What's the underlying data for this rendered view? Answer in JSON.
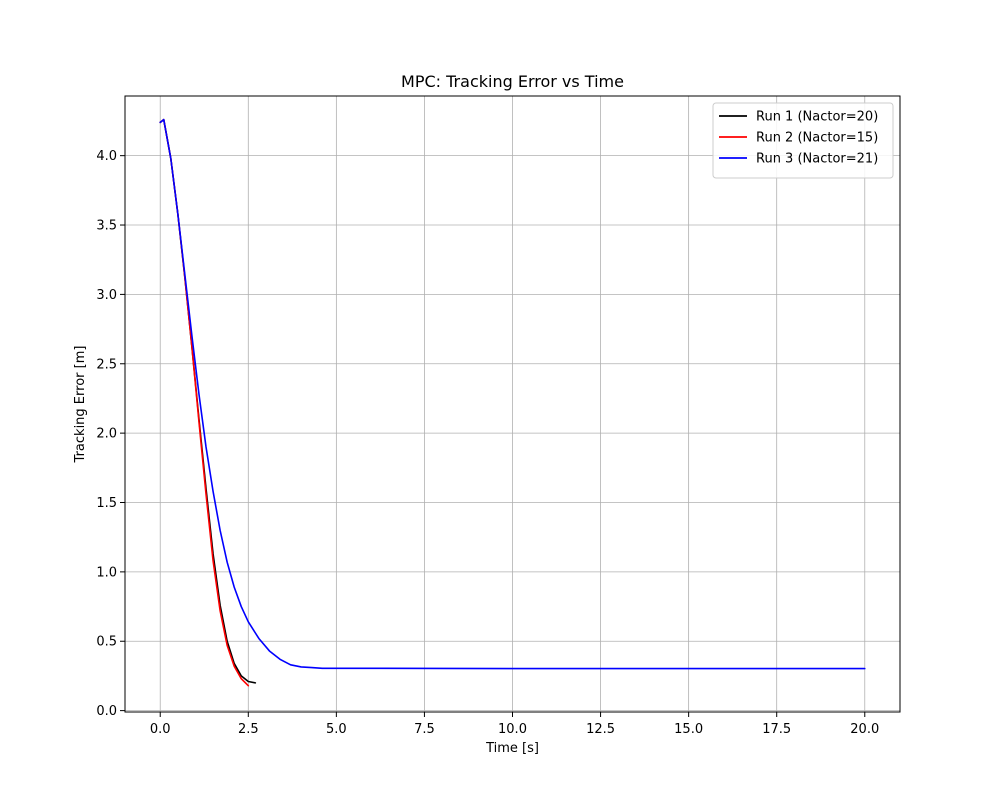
{
  "chart_data": {
    "type": "line",
    "title": "MPC: Tracking Error vs Time",
    "xlabel": "Time [s]",
    "ylabel": "Tracking Error [m]",
    "xlim": [
      -1.0,
      21.0
    ],
    "ylim": [
      -0.01,
      4.43
    ],
    "xticks": [
      0.0,
      2.5,
      5.0,
      7.5,
      10.0,
      12.5,
      15.0,
      17.5,
      20.0
    ],
    "xtick_labels": [
      "0.0",
      "2.5",
      "5.0",
      "7.5",
      "10.0",
      "12.5",
      "15.0",
      "17.5",
      "20.0"
    ],
    "yticks": [
      0.0,
      0.5,
      1.0,
      1.5,
      2.0,
      2.5,
      3.0,
      3.5,
      4.0
    ],
    "ytick_labels": [
      "0.0",
      "0.5",
      "1.0",
      "1.5",
      "2.0",
      "2.5",
      "3.0",
      "3.5",
      "4.0"
    ],
    "grid": true,
    "legend_position": "top-right",
    "series": [
      {
        "name": "Run 1 (Nactor=20)",
        "color": "#000000",
        "x": [
          0.0,
          0.1,
          0.3,
          0.5,
          0.7,
          0.9,
          1.1,
          1.3,
          1.5,
          1.7,
          1.9,
          2.1,
          2.3,
          2.5,
          2.7
        ],
        "y": [
          4.24,
          4.26,
          3.98,
          3.58,
          3.12,
          2.62,
          2.1,
          1.6,
          1.13,
          0.76,
          0.5,
          0.34,
          0.25,
          0.21,
          0.2
        ]
      },
      {
        "name": "Run 2 (Nactor=15)",
        "color": "#ff0000",
        "x": [
          0.0,
          0.1,
          0.3,
          0.5,
          0.7,
          0.9,
          1.1,
          1.3,
          1.5,
          1.7,
          1.9,
          2.1,
          2.3,
          2.5
        ],
        "y": [
          4.24,
          4.26,
          3.98,
          3.58,
          3.12,
          2.62,
          2.08,
          1.56,
          1.08,
          0.72,
          0.47,
          0.32,
          0.23,
          0.18
        ]
      },
      {
        "name": "Run 3 (Nactor=21)",
        "color": "#0000ff",
        "x": [
          0.0,
          0.1,
          0.3,
          0.5,
          0.7,
          0.9,
          1.1,
          1.3,
          1.5,
          1.7,
          1.9,
          2.1,
          2.3,
          2.5,
          2.8,
          3.1,
          3.4,
          3.7,
          4.0,
          4.3,
          4.6,
          5.0,
          6.0,
          8.0,
          10.0,
          12.5,
          15.0,
          17.5,
          20.0
        ],
        "y": [
          4.24,
          4.26,
          3.98,
          3.58,
          3.14,
          2.7,
          2.28,
          1.9,
          1.58,
          1.3,
          1.07,
          0.89,
          0.75,
          0.64,
          0.52,
          0.43,
          0.37,
          0.33,
          0.315,
          0.31,
          0.305,
          0.305,
          0.305,
          0.304,
          0.303,
          0.303,
          0.303,
          0.303,
          0.303
        ]
      }
    ]
  }
}
